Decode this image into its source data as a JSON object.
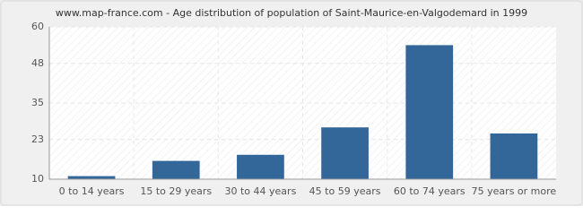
{
  "chart_data": {
    "type": "bar",
    "title": "www.map-france.com - Age distribution of population of Saint-Maurice-en-Valgodemard in 1999",
    "categories": [
      "0 to 14 years",
      "15 to 29 years",
      "30 to 44 years",
      "45 to 59 years",
      "60 to 74 years",
      "75 years or more"
    ],
    "values": [
      11,
      16,
      18,
      27,
      54,
      25
    ],
    "color": "#336699",
    "ylim": [
      10,
      60
    ],
    "yticks": [
      10,
      23,
      35,
      48,
      60
    ],
    "grid": true
  }
}
